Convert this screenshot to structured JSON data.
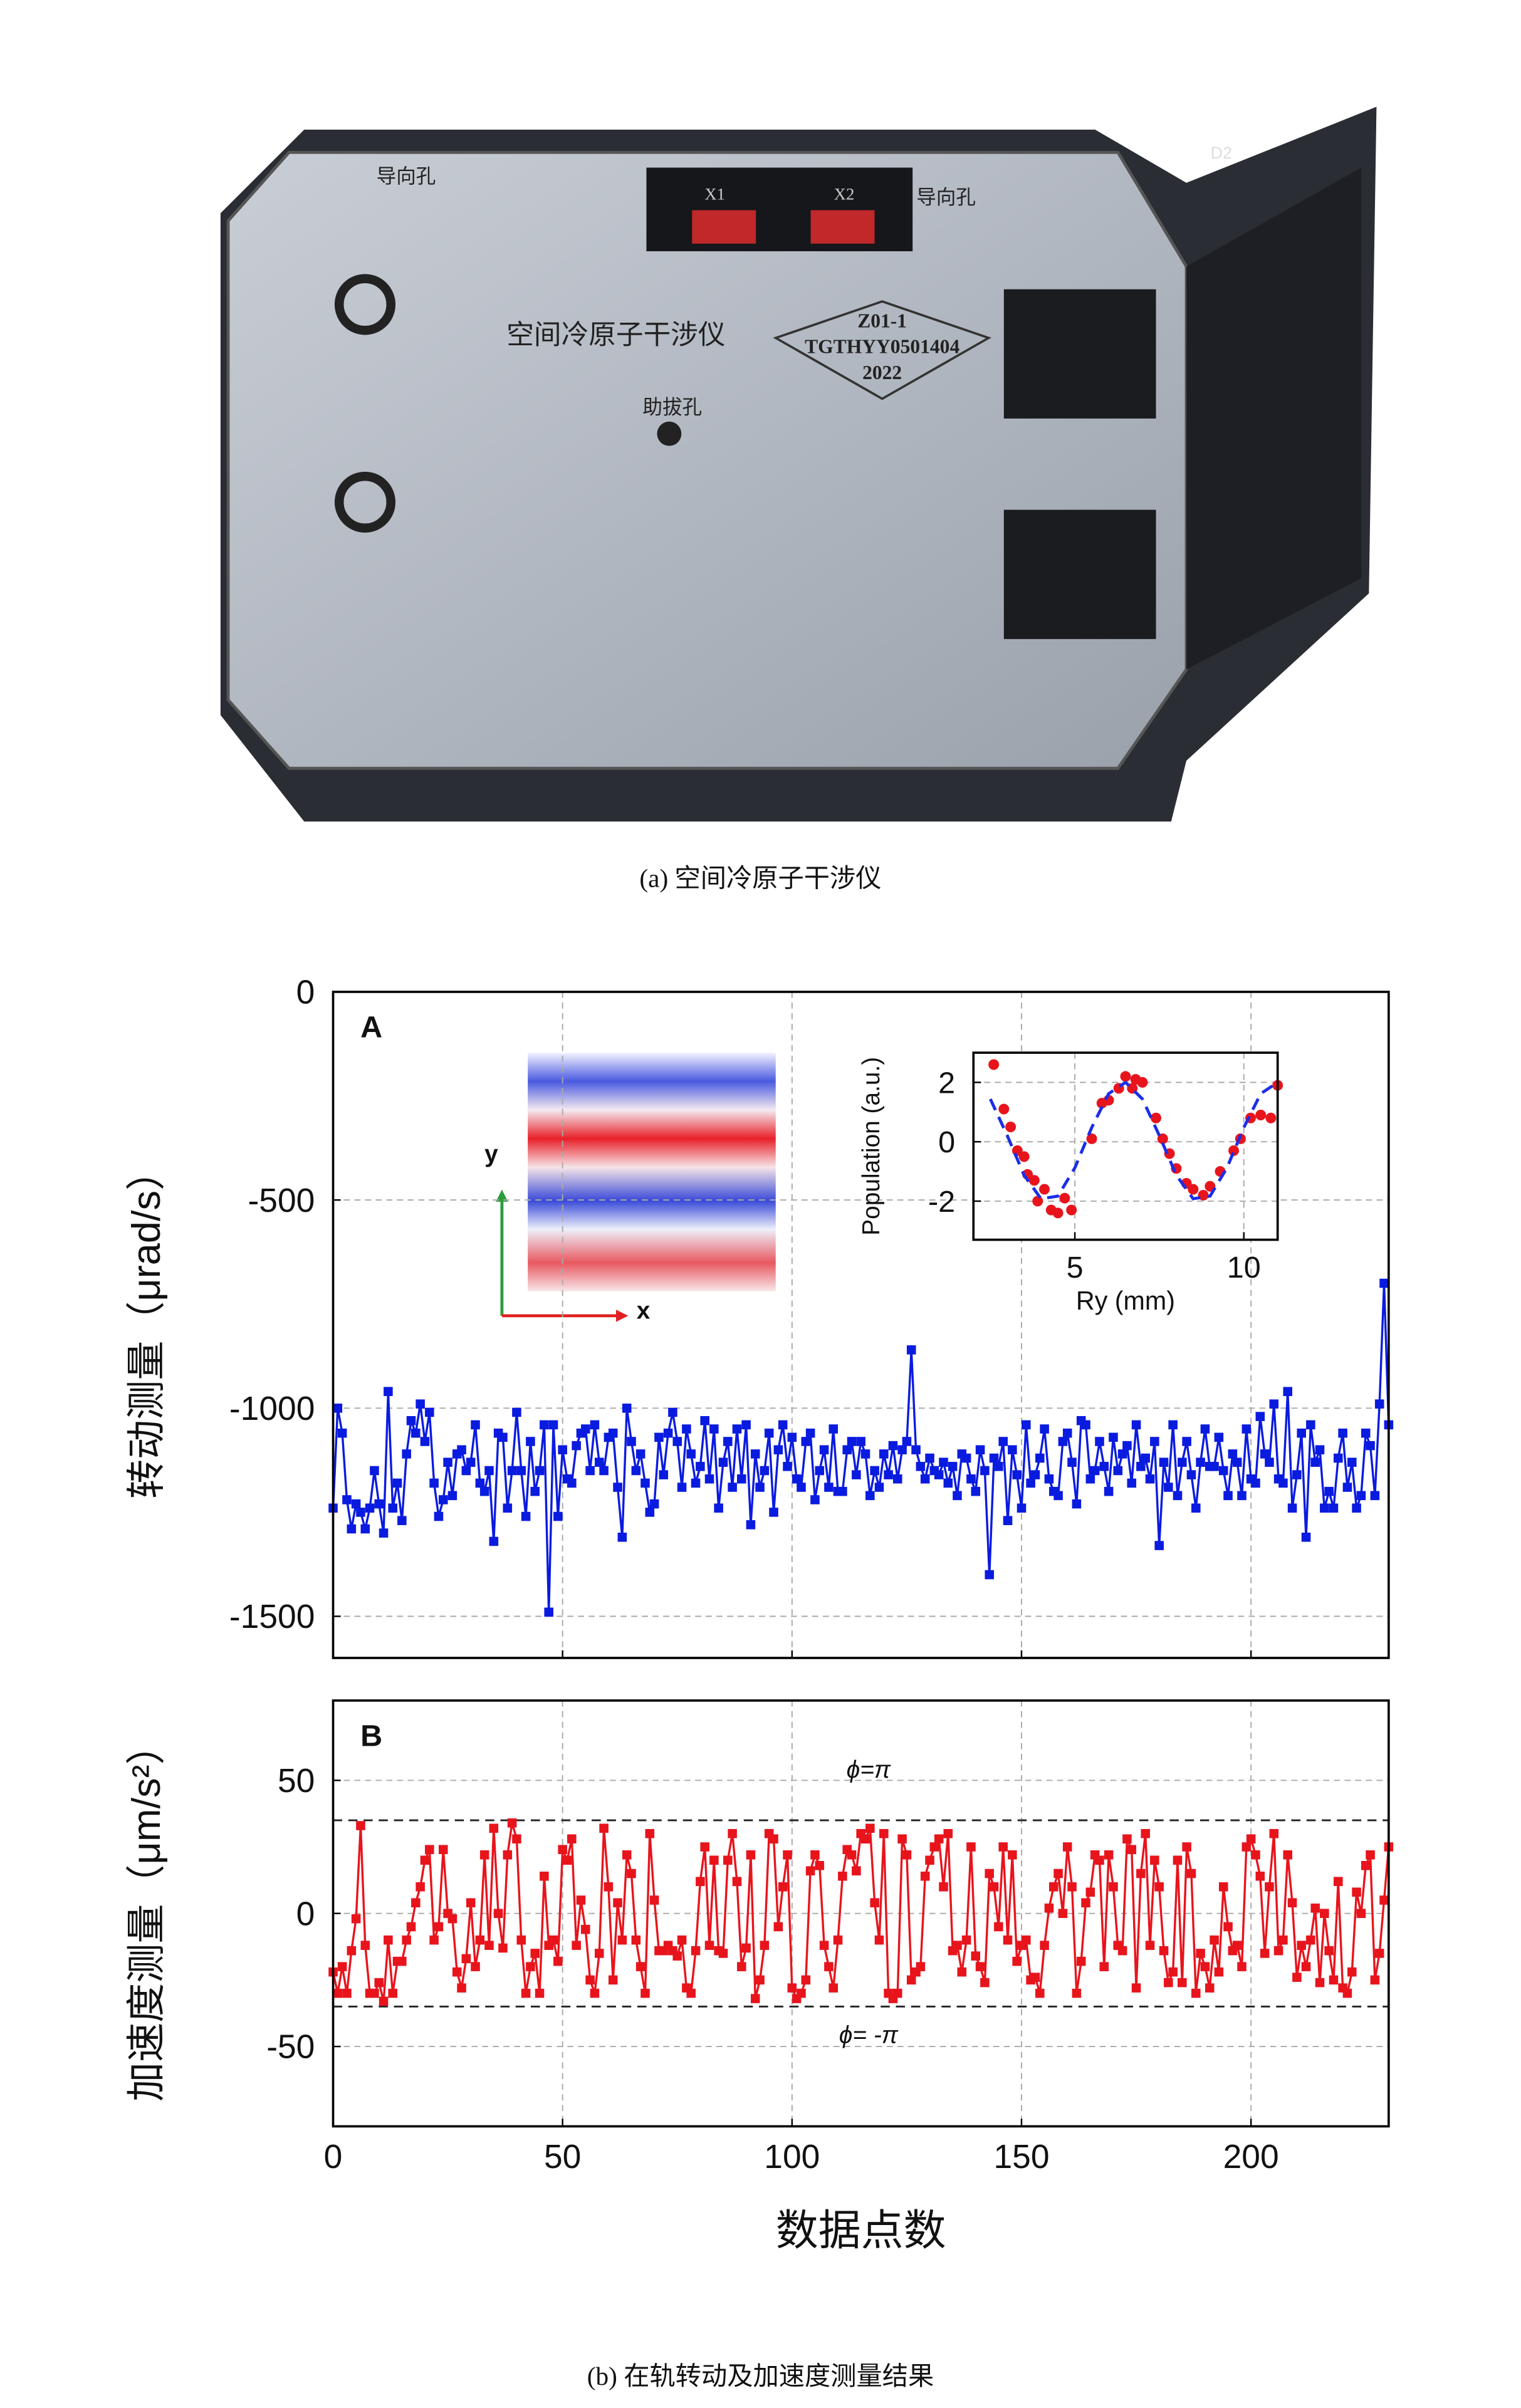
{
  "photo": {
    "labels": [
      "导向孔",
      "导向孔",
      "X1",
      "X2",
      "空间冷原子干涉仪",
      "Z01-1",
      "TGTHYY0501404",
      "2022",
      "助拔孔",
      "D2"
    ]
  },
  "captions": [
    "(a) 空间冷原子干涉仪",
    "(b) 在轨转动及加速度测量结果"
  ],
  "chart_data": [
    {
      "type": "line",
      "panel": "A",
      "ylabel": "转动测量（μrad/s）",
      "grid": true,
      "xtick_labels": false,
      "xlim": [
        0,
        230
      ],
      "xticks": [
        0,
        50,
        100,
        150,
        200
      ],
      "ylim": [
        -1600,
        0
      ],
      "yticks": [
        0,
        -500,
        -1000,
        -1500
      ],
      "x": [
        0,
        1,
        2,
        3,
        4,
        5,
        6,
        7,
        8,
        9,
        10,
        11,
        12,
        13,
        14,
        15,
        16,
        17,
        18,
        19,
        20,
        21,
        22,
        23,
        24,
        25,
        26,
        27,
        28,
        29,
        30,
        31,
        32,
        33,
        34,
        35,
        36,
        37,
        38,
        39,
        40,
        41,
        42,
        43,
        44,
        45,
        46,
        47,
        48,
        49,
        50,
        51,
        52,
        53,
        54,
        55,
        56,
        57,
        58,
        59,
        60,
        61,
        62,
        63,
        64,
        65,
        66,
        67,
        68,
        69,
        70,
        71,
        72,
        73,
        74,
        75,
        76,
        77,
        78,
        79,
        80,
        81,
        82,
        83,
        84,
        85,
        86,
        87,
        88,
        89,
        90,
        91,
        92,
        93,
        94,
        95,
        96,
        97,
        98,
        99,
        100,
        101,
        102,
        103,
        104,
        105,
        106,
        107,
        108,
        109,
        110,
        111,
        112,
        113,
        114,
        115,
        116,
        117,
        118,
        119,
        120,
        121,
        122,
        123,
        124,
        125,
        126,
        127,
        128,
        129,
        130,
        131,
        132,
        133,
        134,
        135,
        136,
        137,
        138,
        139,
        140,
        141,
        142,
        143,
        144,
        145,
        146,
        147,
        148,
        149,
        150,
        151,
        152,
        153,
        154,
        155,
        156,
        157,
        158,
        159,
        160,
        161,
        162,
        163,
        164,
        165,
        166,
        167,
        168,
        169,
        170,
        171,
        172,
        173,
        174,
        175,
        176,
        177,
        178,
        179,
        180,
        181,
        182,
        183,
        184,
        185,
        186,
        187,
        188,
        189,
        190,
        191,
        192,
        193,
        194,
        195,
        196,
        197,
        198,
        199,
        200,
        201,
        202,
        203,
        204,
        205,
        206,
        207,
        208,
        209,
        210,
        211,
        212,
        213,
        214,
        215,
        216,
        217,
        218,
        219,
        220,
        221,
        222,
        223,
        224,
        225,
        226,
        227,
        228,
        229,
        230
      ],
      "series": [
        {
          "color": "#0a1be0",
          "values": [
            -1240,
            -1000,
            -1060,
            -1220,
            -1290,
            -1230,
            -1250,
            -1290,
            -1240,
            -1150,
            -1230,
            -1300,
            -960,
            -1240,
            -1180,
            -1270,
            -1110,
            -1030,
            -1060,
            -990,
            -1080,
            -1010,
            -1180,
            -1260,
            -1220,
            -1130,
            -1210,
            -1110,
            -1100,
            -1150,
            -1130,
            -1040,
            -1180,
            -1200,
            -1150,
            -1320,
            -1060,
            -1070,
            -1240,
            -1150,
            -1010,
            -1150,
            -1260,
            -1080,
            -1200,
            -1150,
            -1040,
            -1490,
            -1040,
            -1260,
            -1100,
            -1170,
            -1180,
            -1090,
            -1060,
            -1050,
            -1150,
            -1040,
            -1130,
            -1150,
            -1070,
            -1060,
            -1190,
            -1310,
            -1000,
            -1080,
            -1150,
            -1110,
            -1180,
            -1250,
            -1230,
            -1070,
            -1160,
            -1060,
            -1010,
            -1080,
            -1190,
            -1050,
            -1110,
            -1180,
            -1140,
            -1030,
            -1170,
            -1050,
            -1240,
            -1130,
            -1080,
            -1190,
            -1050,
            -1170,
            -1040,
            -1280,
            -1110,
            -1190,
            -1150,
            -1060,
            -1250,
            -1100,
            -1040,
            -1140,
            -1070,
            -1170,
            -1190,
            -1080,
            -1060,
            -1220,
            -1150,
            -1100,
            -1190,
            -1050,
            -1200,
            -1200,
            -1100,
            -1080,
            -1160,
            -1080,
            -1110,
            -1210,
            -1150,
            -1190,
            -1110,
            -1160,
            -1090,
            -1170,
            -1100,
            -1080,
            -860,
            -1100,
            -1140,
            -1170,
            -1120,
            -1150,
            -1160,
            -1130,
            -1180,
            -1140,
            -1210,
            -1110,
            -1120,
            -1170,
            -1200,
            -1100,
            -1150,
            -1400,
            -1120,
            -1140,
            -1080,
            -1270,
            -1100,
            -1160,
            -1240,
            -1040,
            -1180,
            -1160,
            -1120,
            -1050,
            -1170,
            -1200,
            -1210,
            -1080,
            -1060,
            -1130,
            -1230,
            -1030,
            -1040,
            -1170,
            -1150,
            -1080,
            -1140,
            -1200,
            -1070,
            -1150,
            -1110,
            -1090,
            -1180,
            -1040,
            -1140,
            -1120,
            -1170,
            -1080,
            -1330,
            -1130,
            -1190,
            -1040,
            -1210,
            -1130,
            -1080,
            -1160,
            -1240,
            -1130,
            -1050,
            -1140,
            -1140,
            -1070,
            -1150,
            -1210,
            -1110,
            -1130,
            -1210,
            -1050,
            -1170,
            -1180,
            -1020,
            -1110,
            -1130,
            -990,
            -1170,
            -1180,
            -960,
            -1240,
            -1160,
            -1060,
            -1310,
            -1040,
            -1130,
            -1100,
            -1240,
            -1200,
            -1240,
            -1120,
            -1060,
            -1190,
            -1130,
            -1240,
            -1210,
            -1060,
            -1090,
            -1210,
            -990,
            -700,
            -1040
          ]
        }
      ]
    },
    {
      "type": "line",
      "panel": "B",
      "ylabel": "加速度测量（μm/s²）",
      "xlabel": "数据点数",
      "grid": true,
      "xtick_labels": true,
      "xlim": [
        0,
        230
      ],
      "xticks": [
        0,
        50,
        100,
        150,
        200
      ],
      "ylim": [
        -80,
        80
      ],
      "yticks": [
        50,
        0,
        -50
      ],
      "hlines": [
        {
          "value": 35,
          "label": "ϕ=π"
        },
        {
          "value": -35,
          "label": "ϕ= -π"
        }
      ],
      "x": [
        0,
        1,
        2,
        3,
        4,
        5,
        6,
        7,
        8,
        9,
        10,
        11,
        12,
        13,
        14,
        15,
        16,
        17,
        18,
        19,
        20,
        21,
        22,
        23,
        24,
        25,
        26,
        27,
        28,
        29,
        30,
        31,
        32,
        33,
        34,
        35,
        36,
        37,
        38,
        39,
        40,
        41,
        42,
        43,
        44,
        45,
        46,
        47,
        48,
        49,
        50,
        51,
        52,
        53,
        54,
        55,
        56,
        57,
        58,
        59,
        60,
        61,
        62,
        63,
        64,
        65,
        66,
        67,
        68,
        69,
        70,
        71,
        72,
        73,
        74,
        75,
        76,
        77,
        78,
        79,
        80,
        81,
        82,
        83,
        84,
        85,
        86,
        87,
        88,
        89,
        90,
        91,
        92,
        93,
        94,
        95,
        96,
        97,
        98,
        99,
        100,
        101,
        102,
        103,
        104,
        105,
        106,
        107,
        108,
        109,
        110,
        111,
        112,
        113,
        114,
        115,
        116,
        117,
        118,
        119,
        120,
        121,
        122,
        123,
        124,
        125,
        126,
        127,
        128,
        129,
        130,
        131,
        132,
        133,
        134,
        135,
        136,
        137,
        138,
        139,
        140,
        141,
        142,
        143,
        144,
        145,
        146,
        147,
        148,
        149,
        150,
        151,
        152,
        153,
        154,
        155,
        156,
        157,
        158,
        159,
        160,
        161,
        162,
        163,
        164,
        165,
        166,
        167,
        168,
        169,
        170,
        171,
        172,
        173,
        174,
        175,
        176,
        177,
        178,
        179,
        180,
        181,
        182,
        183,
        184,
        185,
        186,
        187,
        188,
        189,
        190,
        191,
        192,
        193,
        194,
        195,
        196,
        197,
        198,
        199,
        200,
        201,
        202,
        203,
        204,
        205,
        206,
        207,
        208,
        209,
        210,
        211,
        212,
        213,
        214,
        215,
        216,
        217,
        218,
        219,
        220,
        221,
        222,
        223,
        224,
        225,
        226,
        227,
        228,
        229,
        230
      ],
      "series": [
        {
          "color": "#e8141c",
          "values": [
            -22,
            -30,
            -20,
            -30,
            -14,
            -2,
            33,
            -12,
            -30,
            -30,
            -26,
            -33,
            -10,
            -30,
            -18,
            -18,
            -10,
            -5,
            4,
            10,
            20,
            24,
            -10,
            -5,
            24,
            0,
            -2,
            -22,
            -28,
            -17,
            4,
            -20,
            -10,
            22,
            -12,
            32,
            0,
            -13,
            22,
            34,
            28,
            -10,
            -30,
            -20,
            -15,
            -30,
            14,
            -12,
            -10,
            -18,
            24,
            20,
            28,
            -12,
            5,
            -6,
            -25,
            -30,
            -15,
            32,
            10,
            -25,
            4,
            -10,
            22,
            15,
            -10,
            -20,
            -30,
            30,
            5,
            -14,
            -14,
            -12,
            -14,
            -16,
            -10,
            -28,
            -30,
            -14,
            12,
            25,
            -12,
            20,
            -14,
            -15,
            20,
            30,
            12,
            -20,
            -13,
            22,
            -32,
            -25,
            -12,
            30,
            28,
            -5,
            10,
            22,
            -28,
            -32,
            -30,
            -25,
            16,
            22,
            18,
            -12,
            -20,
            -28,
            -10,
            14,
            24,
            22,
            16,
            30,
            28,
            32,
            4,
            -10,
            30,
            -30,
            -32,
            -30,
            28,
            22,
            -25,
            -22,
            -20,
            14,
            20,
            25,
            28,
            10,
            30,
            -14,
            -12,
            -22,
            -10,
            25,
            -16,
            -20,
            -26,
            15,
            10,
            -5,
            25,
            -10,
            22,
            -18,
            -12,
            -10,
            -25,
            -24,
            -30,
            -12,
            2,
            10,
            15,
            0,
            25,
            10,
            -30,
            -18,
            4,
            8,
            22,
            20,
            -20,
            22,
            10,
            -12,
            -14,
            28,
            24,
            -28,
            15,
            30,
            -12,
            20,
            10,
            -14,
            -26,
            -22,
            20,
            -26,
            25,
            15,
            -30,
            -15,
            -20,
            -28,
            -10,
            -22,
            10,
            -5,
            -14,
            -12,
            -20,
            25,
            28,
            22,
            14,
            -15,
            10,
            30,
            -14,
            -10,
            22,
            4,
            -24,
            -12,
            -20,
            -10,
            2,
            -26,
            0,
            -14,
            -25,
            12,
            -28,
            -30,
            -22,
            8,
            0,
            18,
            22,
            -25,
            -15,
            5,
            25
          ]
        }
      ]
    },
    {
      "type": "scatter",
      "ylabel": "Population (a.u.)",
      "xlabel": "Ry (mm)",
      "grid": true,
      "xtick_labels": true,
      "xlim": [
        2,
        11
      ],
      "xticks": [
        5,
        10
      ],
      "ylim": [
        -3.3,
        3
      ],
      "yticks": [
        2,
        0,
        -2
      ],
      "series": [
        {
          "color": "#e8141c",
          "style": "dots",
          "x": [
            2.6,
            2.9,
            3.1,
            3.3,
            3.5,
            3.6,
            3.8,
            3.9,
            4.1,
            4.3,
            4.5,
            4.7,
            4.9,
            5.5,
            5.8,
            6.0,
            6.3,
            6.5,
            6.7,
            6.8,
            7.0,
            7.4,
            7.6,
            7.8,
            8.0,
            8.3,
            8.5,
            8.8,
            9.0,
            9.3,
            9.7,
            9.9,
            10.2,
            10.5,
            10.8,
            11.0
          ],
          "values": [
            2.6,
            1.1,
            0.5,
            -0.3,
            -0.5,
            -1.1,
            -1.3,
            -2.0,
            -1.6,
            -2.3,
            -2.4,
            -1.9,
            -2.3,
            0.1,
            1.3,
            1.4,
            1.8,
            2.2,
            1.8,
            2.1,
            2.0,
            0.8,
            0.1,
            -0.4,
            -0.9,
            -1.4,
            -1.6,
            -1.8,
            -1.5,
            -1.0,
            -0.3,
            0.1,
            0.8,
            0.9,
            0.8,
            1.9
          ]
        },
        {
          "color": "#1a2ee8",
          "style": "dashed",
          "x": [
            2.5,
            3,
            3.5,
            4,
            4.5,
            5,
            5.5,
            6,
            6.5,
            7,
            7.5,
            8,
            8.5,
            9,
            9.5,
            10,
            10.5,
            11
          ],
          "values": [
            1.44,
            0.21,
            -1.13,
            -1.92,
            -1.83,
            -0.88,
            0.48,
            1.62,
            2.0,
            1.44,
            0.21,
            -1.12,
            -1.92,
            -1.83,
            -0.88,
            0.48,
            1.62,
            2.0
          ]
        }
      ]
    }
  ]
}
